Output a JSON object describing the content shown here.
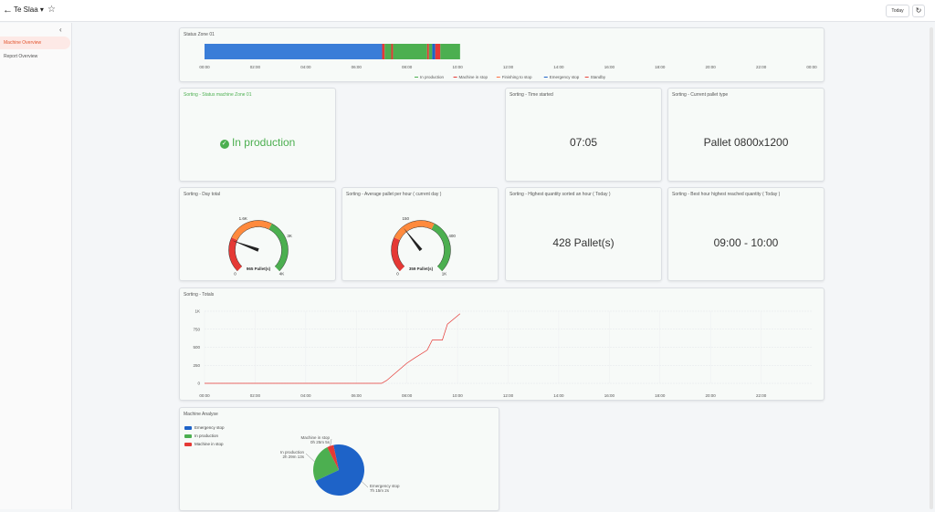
{
  "topbar": {
    "title": "Te Slaa",
    "today_label": "Today"
  },
  "sidebar": {
    "items": [
      {
        "label": "Machine Overview"
      },
      {
        "label": "Report Overview"
      }
    ]
  },
  "status_zone": {
    "title": "Status Zone 01",
    "time_labels": [
      "00:00",
      "02:00",
      "04:00",
      "06:00",
      "08:00",
      "10:00",
      "12:00",
      "14:00",
      "16:00",
      "18:00",
      "20:00",
      "22:00",
      "00:00"
    ],
    "legend": [
      {
        "label": "In production",
        "color": "#4caf50"
      },
      {
        "label": "Machine in stop",
        "color": "#e53935"
      },
      {
        "label": "Finishing to stop",
        "color": "#ff7043"
      },
      {
        "label": "Emergency stop",
        "color": "#1e63c8"
      },
      {
        "label": "Standby",
        "color": "#e8443a"
      }
    ],
    "segments": [
      {
        "state": "Emergency stop",
        "from": 0.0,
        "to": 7.02,
        "color": "#3a7dd8"
      },
      {
        "state": "Machine in stop",
        "from": 7.02,
        "to": 7.12,
        "color": "#e53935"
      },
      {
        "state": "In production",
        "from": 7.12,
        "to": 7.38,
        "color": "#4caf50"
      },
      {
        "state": "Machine in stop",
        "from": 7.38,
        "to": 7.45,
        "color": "#e53935"
      },
      {
        "state": "In production",
        "from": 7.45,
        "to": 8.8,
        "color": "#4caf50"
      },
      {
        "state": "Machine in stop",
        "from": 8.8,
        "to": 8.87,
        "color": "#e53935"
      },
      {
        "state": "In production",
        "from": 8.87,
        "to": 9.0,
        "color": "#4caf50"
      },
      {
        "state": "Emergency stop",
        "from": 9.0,
        "to": 9.12,
        "color": "#1e63c8"
      },
      {
        "state": "Machine in stop",
        "from": 9.12,
        "to": 9.32,
        "color": "#e53935"
      },
      {
        "state": "In production",
        "from": 9.32,
        "to": 10.1,
        "color": "#4caf50"
      }
    ]
  },
  "status_machine": {
    "title": "Sorting - Status machine Zone 01",
    "value": "In production"
  },
  "time_started": {
    "title": "Sorting - Time started",
    "value": "07:05"
  },
  "pallet_type": {
    "title": "Sorting - Current pallet type",
    "value": "Pallet 0800x1200"
  },
  "day_total": {
    "title": "Sorting - Day total",
    "value_label": "965 Pallet(s)",
    "value": 965,
    "max": 4000,
    "tick_labels": {
      "min": "0",
      "t1": "1.6K",
      "t2": "3K",
      "max": "4K"
    }
  },
  "avg_per_hour": {
    "title": "Sorting - Average pallet per hour ( current day )",
    "value_label": "359 Pallet(s)",
    "value": 359,
    "max": 1000,
    "tick_labels": {
      "min": "0",
      "t1": "150",
      "t2": "400",
      "max": "1K"
    }
  },
  "highest_qty": {
    "title": "Sorting - Highest quantity sorted an hour ( Today )",
    "value": "428 Pallet(s)"
  },
  "best_hour": {
    "title": "Sorting - Best hour highest reached quantity ( Today )",
    "value": "09:00 - 10:00"
  },
  "totals": {
    "title": "Sorting - Totals",
    "chart_data": {
      "type": "line",
      "title": "Sorting - Totals",
      "xlabel": "",
      "ylabel": "",
      "x_tick_labels": [
        "00:00",
        "02:00",
        "04:00",
        "06:00",
        "08:00",
        "10:00",
        "12:00",
        "14:00",
        "16:00",
        "18:00",
        "20:00",
        "22:00"
      ],
      "y_tick_labels": [
        "0",
        "250",
        "500",
        "750",
        "1K"
      ],
      "xlim": [
        0,
        24
      ],
      "ylim": [
        0,
        1000
      ],
      "series": [
        {
          "color": "#e53935",
          "x": [
            0,
            7.0,
            7.2,
            7.6,
            8.0,
            8.3,
            8.8,
            9.0,
            9.4,
            9.6,
            10.1
          ],
          "y": [
            0,
            0,
            40,
            160,
            280,
            350,
            460,
            600,
            600,
            820,
            965
          ]
        }
      ]
    }
  },
  "machine_analyse": {
    "title": "Machine Analyse",
    "legend": [
      {
        "label": "Emergency stop",
        "color": "#1e63c8"
      },
      {
        "label": "In production",
        "color": "#4caf50"
      },
      {
        "label": "Machine in stop",
        "color": "#e53935"
      }
    ],
    "chart_data": {
      "type": "pie",
      "slices": [
        {
          "label": "Emergency stop",
          "value_text": "7h 15m 2s",
          "value": 26102,
          "color": "#1e63c8"
        },
        {
          "label": "In production",
          "value_text": "2h 29m 13s",
          "value": 8953,
          "color": "#4caf50"
        },
        {
          "label": "Machine in stop",
          "value_text": "0h 25m 5s",
          "value": 1505,
          "color": "#e53935"
        }
      ]
    }
  }
}
